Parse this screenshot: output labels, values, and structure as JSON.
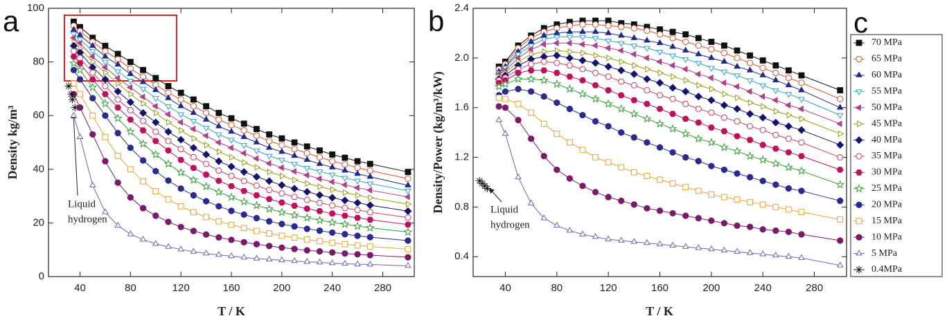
{
  "chart_data": [
    {
      "type": "line",
      "panel_label": "a",
      "x_label": "T / K",
      "y_label": "Density kg/m³",
      "xlim": [
        15,
        305
      ],
      "xticks": [
        40,
        80,
        120,
        160,
        200,
        240,
        280
      ],
      "ylim": [
        0,
        100
      ],
      "yticks": [
        0,
        20,
        40,
        60,
        80,
        100
      ],
      "annotation": [
        "Liquid",
        "hydrogen"
      ],
      "x": [
        35,
        40,
        50,
        60,
        70,
        80,
        90,
        100,
        110,
        120,
        130,
        140,
        150,
        160,
        170,
        180,
        190,
        200,
        210,
        220,
        230,
        240,
        250,
        260,
        270,
        300
      ],
      "series": [
        {
          "name": "70 MPa",
          "color": "#111111",
          "marker": "square",
          "filled": true,
          "values": [
            95,
            93,
            89,
            86,
            83,
            80,
            77,
            74,
            71,
            68.5,
            66,
            63.5,
            61,
            59,
            57,
            55,
            53,
            51.5,
            50,
            48.5,
            47,
            45.5,
            44.3,
            43,
            42,
            39
          ]
        },
        {
          "name": "65 MPa",
          "color": "#e0502a",
          "marker": "circle",
          "filled": false,
          "values": [
            93.5,
            91.5,
            87.5,
            84,
            81,
            77.5,
            74.5,
            71.5,
            68.5,
            66,
            63.5,
            61,
            58.5,
            56.5,
            54.5,
            52.5,
            50.5,
            49,
            47.5,
            46,
            44.5,
            43,
            41.8,
            40.6,
            39.5,
            36.5
          ]
        },
        {
          "name": "60 MPa",
          "color": "#1f2a8c",
          "marker": "triangle-up",
          "filled": true,
          "values": [
            92,
            90,
            86,
            82,
            79,
            75.5,
            72.5,
            69.5,
            66.5,
            63.5,
            61,
            58.5,
            56,
            54,
            52,
            50,
            48,
            46.5,
            45,
            43.5,
            42,
            40.7,
            39.5,
            38.3,
            37.2,
            34
          ]
        },
        {
          "name": "55 MPa",
          "color": "#2aa6c8",
          "marker": "triangle-down",
          "filled": false,
          "values": [
            90.5,
            88.5,
            84,
            80,
            76.5,
            73,
            70,
            66.5,
            63.5,
            60.5,
            58,
            55.5,
            53,
            51,
            49,
            47,
            45,
            43.5,
            42,
            40.5,
            39.2,
            38,
            36.8,
            35.7,
            34.7,
            32
          ]
        },
        {
          "name": "50 MPa",
          "color": "#b0408a",
          "marker": "triangle-left",
          "filled": true,
          "values": [
            89,
            87,
            82,
            78,
            74,
            70.5,
            67,
            63.5,
            60.5,
            57.5,
            55,
            52.5,
            50,
            48,
            46,
            44,
            42.2,
            40.6,
            39.2,
            37.8,
            36.5,
            35.3,
            34.2,
            33.1,
            32.2,
            29.7
          ]
        },
        {
          "name": "45 MPa",
          "color": "#9a9a10",
          "marker": "triangle-right",
          "filled": false,
          "values": [
            87.5,
            85,
            80,
            76,
            72,
            68,
            64.5,
            61,
            57.5,
            54.5,
            51.5,
            49,
            46.5,
            44.5,
            42.5,
            40.7,
            39,
            37.5,
            36,
            34.7,
            33.5,
            32.4,
            31.3,
            30.3,
            29.4,
            27
          ]
        },
        {
          "name": "40 MPa",
          "color": "#14146e",
          "marker": "diamond",
          "filled": true,
          "values": [
            86,
            83.5,
            78,
            73.5,
            69,
            65,
            61,
            57.5,
            54,
            51,
            48,
            45.5,
            43,
            41,
            39,
            37.2,
            35.6,
            34.1,
            32.8,
            31.6,
            30.4,
            29.4,
            28.4,
            27.5,
            26.6,
            24.4
          ]
        },
        {
          "name": "35 MPa",
          "color": "#d04060",
          "marker": "hexagon",
          "filled": false,
          "values": [
            84,
            81.5,
            76,
            71,
            66,
            62,
            58,
            54,
            50.5,
            47.5,
            44.5,
            42,
            39.5,
            37.5,
            35.6,
            33.9,
            32.3,
            31,
            29.7,
            28.6,
            27.5,
            26.5,
            25.6,
            24.8,
            24,
            22
          ]
        },
        {
          "name": "30 MPa",
          "color": "#c0105a",
          "marker": "hexagon",
          "filled": true,
          "values": [
            82,
            79.5,
            73.5,
            68,
            63,
            58.5,
            54.5,
            50.5,
            47,
            43.5,
            40.5,
            38,
            35.7,
            33.7,
            31.9,
            30.3,
            28.9,
            27.6,
            26.4,
            25.3,
            24.4,
            23.5,
            22.7,
            21.9,
            21.2,
            19.4
          ]
        },
        {
          "name": "25 MPa",
          "color": "#30a030",
          "marker": "star",
          "filled": false,
          "values": [
            79.5,
            77,
            70.5,
            64.5,
            59,
            54,
            49.5,
            45.5,
            42,
            38.8,
            36,
            33.6,
            31.5,
            29.6,
            27.9,
            26.5,
            25.2,
            24,
            22.9,
            21.9,
            21,
            20.2,
            19.5,
            18.8,
            18.2,
            16.6
          ]
        },
        {
          "name": "20 MPa",
          "color": "#2a2a90",
          "marker": "circle",
          "filled": true,
          "values": [
            77,
            73.5,
            66.5,
            60,
            53.5,
            48,
            43.3,
            39.3,
            35.8,
            32.8,
            30.3,
            28.1,
            26.2,
            24.5,
            23.1,
            21.8,
            20.6,
            19.6,
            18.7,
            17.8,
            17.1,
            16.4,
            15.8,
            15.2,
            14.7,
            13.4
          ]
        },
        {
          "name": "15 MPa",
          "color": "#f0a030",
          "marker": "square",
          "filled": false,
          "values": [
            72,
            68,
            60,
            52,
            45,
            40,
            35.5,
            31.8,
            28.8,
            26.2,
            24,
            22.2,
            20.6,
            19.3,
            18.1,
            17,
            16.1,
            15.2,
            14.5,
            13.8,
            13.2,
            12.6,
            12.1,
            11.6,
            11.2,
            10.2
          ]
        },
        {
          "name": "10 MPa",
          "color": "#7a1a6a",
          "marker": "circle",
          "filled": true,
          "values": [
            68,
            63,
            53,
            43,
            35,
            29.5,
            25.5,
            22.7,
            20.4,
            18.5,
            17,
            15.7,
            14.6,
            13.7,
            12.8,
            12.1,
            11.4,
            10.8,
            10.3,
            9.8,
            9.4,
            9,
            8.6,
            8.3,
            8,
            7.2
          ]
        },
        {
          "name": "5 MPa",
          "color": "#7060b0",
          "marker": "triangle-up",
          "filled": false,
          "values": [
            60,
            52,
            34,
            24,
            19,
            15.8,
            13.8,
            12.2,
            11.1,
            10.1,
            9.3,
            8.6,
            8.1,
            7.6,
            7.1,
            6.7,
            6.4,
            6.1,
            5.8,
            5.5,
            5.3,
            5,
            4.8,
            4.6,
            4.5,
            4
          ]
        },
        {
          "name": "0.4MPa",
          "color": "#111111",
          "marker": "asterisk",
          "filled": false,
          "x": [
            31,
            33,
            34,
            36
          ],
          "values": [
            71,
            68,
            66,
            63
          ]
        }
      ]
    },
    {
      "type": "line",
      "panel_label": "b",
      "x_label": "T / K",
      "y_label": "Density/Power (kg/m³/kW)",
      "legend_label": "c",
      "legend": "right",
      "xlim": [
        15,
        305
      ],
      "xticks": [
        40,
        80,
        120,
        160,
        200,
        240,
        280
      ],
      "ylim": [
        0.24,
        2.4
      ],
      "yticks": [
        0.4,
        0.8,
        1.2,
        1.6,
        {
          "value": 2,
          "label": "2.0"
        },
        2.4
      ],
      "annotation": [
        "Liquid",
        "hydrogen"
      ],
      "x": [
        35,
        40,
        50,
        60,
        70,
        80,
        90,
        100,
        110,
        120,
        130,
        140,
        150,
        160,
        170,
        180,
        190,
        200,
        210,
        220,
        230,
        240,
        250,
        260,
        270,
        300
      ],
      "series": [
        {
          "values": [
            1.93,
            1.97,
            2.1,
            2.18,
            2.24,
            2.27,
            2.29,
            2.3,
            2.3,
            2.3,
            2.28,
            2.27,
            2.25,
            2.23,
            2.21,
            2.19,
            2.16,
            2.13,
            2.1,
            2.06,
            2.02,
            1.98,
            1.94,
            1.9,
            1.86,
            1.74
          ]
        },
        {
          "values": [
            1.91,
            1.95,
            2.08,
            2.16,
            2.21,
            2.24,
            2.26,
            2.27,
            2.27,
            2.26,
            2.25,
            2.24,
            2.22,
            2.19,
            2.16,
            2.13,
            2.1,
            2.07,
            2.04,
            2,
            1.96,
            1.92,
            1.88,
            1.84,
            1.8,
            1.67
          ]
        },
        {
          "values": [
            1.89,
            1.93,
            2.05,
            2.13,
            2.18,
            2.2,
            2.21,
            2.21,
            2.21,
            2.2,
            2.18,
            2.16,
            2.14,
            2.12,
            2.09,
            2.06,
            2.03,
            2,
            1.97,
            1.93,
            1.9,
            1.86,
            1.82,
            1.78,
            1.74,
            1.6
          ]
        },
        {
          "values": [
            1.88,
            1.92,
            2.03,
            2.1,
            2.15,
            2.17,
            2.17,
            2.17,
            2.16,
            2.14,
            2.12,
            2.1,
            2.08,
            2.05,
            2.02,
            1.99,
            1.96,
            1.92,
            1.89,
            1.86,
            1.82,
            1.78,
            1.74,
            1.71,
            1.67,
            1.54
          ]
        },
        {
          "values": [
            1.87,
            1.9,
            2,
            2.07,
            2.11,
            2.12,
            2.12,
            2.11,
            2.1,
            2.08,
            2.06,
            2.03,
            2,
            1.97,
            1.94,
            1.91,
            1.87,
            1.84,
            1.8,
            1.77,
            1.73,
            1.69,
            1.66,
            1.62,
            1.59,
            1.47
          ]
        },
        {
          "values": [
            1.85,
            1.88,
            1.97,
            2.03,
            2.05,
            2.06,
            2.05,
            2.04,
            2.02,
            2,
            1.97,
            1.94,
            1.91,
            1.88,
            1.85,
            1.82,
            1.78,
            1.75,
            1.71,
            1.68,
            1.64,
            1.61,
            1.57,
            1.54,
            1.51,
            1.39
          ]
        },
        {
          "values": [
            1.83,
            1.86,
            1.94,
            1.99,
            2.01,
            2.02,
            2,
            1.98,
            1.96,
            1.93,
            1.9,
            1.87,
            1.83,
            1.8,
            1.76,
            1.73,
            1.69,
            1.66,
            1.62,
            1.59,
            1.55,
            1.52,
            1.48,
            1.45,
            1.42,
            1.3
          ]
        },
        {
          "values": [
            1.82,
            1.84,
            1.91,
            1.95,
            1.97,
            1.96,
            1.94,
            1.91,
            1.88,
            1.85,
            1.81,
            1.78,
            1.74,
            1.7,
            1.67,
            1.63,
            1.59,
            1.56,
            1.52,
            1.49,
            1.45,
            1.42,
            1.38,
            1.35,
            1.32,
            1.2
          ]
        },
        {
          "values": [
            1.8,
            1.82,
            1.88,
            1.9,
            1.9,
            1.88,
            1.85,
            1.82,
            1.78,
            1.74,
            1.7,
            1.66,
            1.63,
            1.59,
            1.55,
            1.51,
            1.48,
            1.44,
            1.41,
            1.37,
            1.34,
            1.3,
            1.27,
            1.24,
            1.21,
            1.1
          ]
        },
        {
          "values": [
            1.77,
            1.79,
            1.83,
            1.83,
            1.82,
            1.79,
            1.75,
            1.71,
            1.67,
            1.63,
            1.59,
            1.55,
            1.51,
            1.47,
            1.43,
            1.39,
            1.35,
            1.32,
            1.28,
            1.25,
            1.21,
            1.18,
            1.15,
            1.12,
            1.09,
            0.98
          ]
        },
        {
          "values": [
            1.7,
            1.73,
            1.75,
            1.73,
            1.69,
            1.64,
            1.59,
            1.54,
            1.49,
            1.45,
            1.4,
            1.36,
            1.32,
            1.28,
            1.24,
            1.2,
            1.17,
            1.13,
            1.1,
            1.07,
            1.04,
            1.01,
            0.98,
            0.95,
            0.93,
            0.85
          ]
        },
        {
          "values": [
            1.68,
            1.67,
            1.63,
            1.56,
            1.47,
            1.39,
            1.32,
            1.26,
            1.2,
            1.16,
            1.12,
            1.08,
            1.05,
            1.02,
            0.99,
            0.96,
            0.93,
            0.9,
            0.88,
            0.86,
            0.84,
            0.82,
            0.8,
            0.78,
            0.76,
            0.7
          ]
        },
        {
          "values": [
            1.61,
            1.6,
            1.5,
            1.35,
            1.21,
            1.1,
            1.03,
            0.97,
            0.92,
            0.88,
            0.85,
            0.82,
            0.79,
            0.77,
            0.75,
            0.73,
            0.71,
            0.69,
            0.67,
            0.65,
            0.64,
            0.62,
            0.61,
            0.6,
            0.58,
            0.53
          ]
        },
        {
          "values": [
            1.5,
            1.39,
            1.04,
            0.83,
            0.71,
            0.65,
            0.61,
            0.58,
            0.56,
            0.54,
            0.53,
            0.52,
            0.51,
            0.5,
            0.49,
            0.48,
            0.47,
            0.46,
            0.45,
            0.44,
            0.43,
            0.42,
            0.41,
            0.4,
            0.39,
            0.33
          ]
        },
        {
          "x": [
            20,
            22,
            24,
            26
          ],
          "values": [
            1.01,
            0.99,
            0.97,
            0.95
          ]
        }
      ]
    }
  ]
}
